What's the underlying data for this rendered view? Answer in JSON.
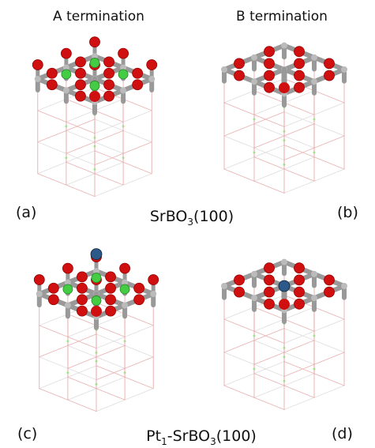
{
  "panels": [
    {
      "header": "A termination",
      "label": "(a)"
    },
    {
      "header": "B termination",
      "label": "(b)"
    },
    {
      "label": "(c)"
    },
    {
      "label": "(d)"
    }
  ],
  "captions": [
    {
      "parts": [
        "SrBO",
        "3",
        "(100)"
      ]
    },
    {
      "parts": [
        "Pt",
        "1",
        "-SrBO",
        "3",
        "(100)"
      ]
    }
  ]
}
